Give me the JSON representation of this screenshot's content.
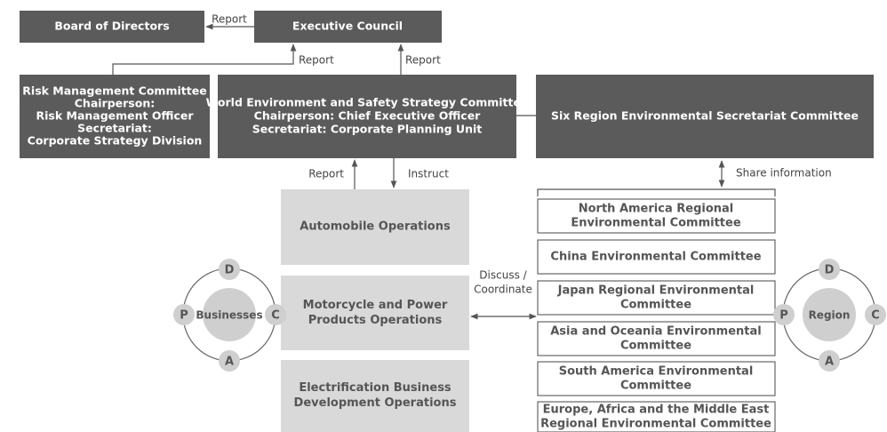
{
  "top": {
    "board": "Board of Directors",
    "executive": "Executive Council"
  },
  "committees": {
    "risk": [
      "Risk Management Committee",
      "Chairperson:",
      "Risk Management Officer",
      "Secretariat:",
      "Corporate Strategy Division"
    ],
    "world": [
      "World Environment and Safety Strategy Committee",
      "Chairperson: Chief Executive Officer",
      "Secretariat: Corporate Planning Unit"
    ],
    "six_region": "Six Region Environmental Secretariat Committee"
  },
  "operations": [
    [
      "Automobile Operations"
    ],
    [
      "Motorcycle and Power",
      "Products Operations"
    ],
    [
      "Electrification Business",
      "Development Operations"
    ]
  ],
  "regional_committees": [
    [
      "North America Regional",
      "Environmental Committee"
    ],
    [
      "China Environmental Committee"
    ],
    [
      "Japan Regional Environmental",
      "Committee"
    ],
    [
      "Asia and Oceania Environmental",
      "Committee"
    ],
    [
      "South America Environmental",
      "Committee"
    ],
    [
      "Europe, Africa and the Middle East",
      "Regional Environmental Committee"
    ]
  ],
  "edge_labels": {
    "report_board": "Report",
    "report_risk": "Report",
    "report_world": "Report",
    "report_ops": "Report",
    "instruct": "Instruct",
    "share": "Share information",
    "discuss": [
      "Discuss /",
      "Coordinate"
    ]
  },
  "cycles": [
    {
      "center": "Businesses",
      "steps": [
        "D",
        "C",
        "A",
        "P"
      ]
    },
    {
      "center": "Region",
      "steps": [
        "D",
        "C",
        "A",
        "P"
      ]
    }
  ]
}
